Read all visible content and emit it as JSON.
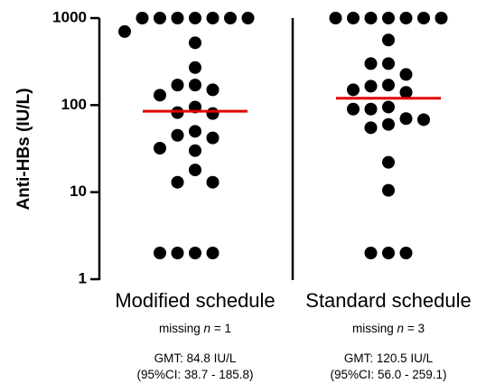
{
  "chart_data": {
    "type": "scatter",
    "ylabel": "Anti-HBs (IU/L)",
    "yscale": "log",
    "ylim": [
      1,
      1000
    ],
    "yticks": [
      {
        "value": 1,
        "label": "1"
      },
      {
        "value": 10,
        "label": "10"
      },
      {
        "value": 100,
        "label": "100"
      },
      {
        "value": 1000,
        "label": "1000"
      }
    ],
    "grid": false,
    "median_color": "#e00000",
    "point_color": "#000000",
    "groups": [
      {
        "label": "Modified schedule",
        "missing_prefix": "missing ",
        "missing_n": "n",
        "missing_suffix": " = 1",
        "gmt": "GMT: 84.8 IU/L",
        "ci": "(95%CI: 38.7 - 185.8)",
        "median": 85,
        "values": [
          1000,
          1000,
          1000,
          1000,
          1000,
          1000,
          1000,
          700,
          520,
          270,
          170,
          130,
          170,
          150,
          95,
          82,
          80,
          45,
          42,
          50,
          32,
          30,
          18,
          13,
          13,
          2,
          2,
          2,
          2
        ]
      },
      {
        "label": "Standard schedule",
        "missing_prefix": "missing ",
        "missing_n": "n",
        "missing_suffix": " = 3",
        "gmt": "GMT: 120.5 IU/L",
        "ci": "(95%CI: 56.0 - 259.1)",
        "median": 120,
        "values": [
          1000,
          1000,
          1000,
          1000,
          1000,
          1000,
          1000,
          560,
          300,
          300,
          225,
          165,
          140,
          170,
          150,
          95,
          90,
          90,
          70,
          68,
          60,
          55,
          22,
          10.5,
          2,
          2,
          2
        ]
      }
    ]
  }
}
